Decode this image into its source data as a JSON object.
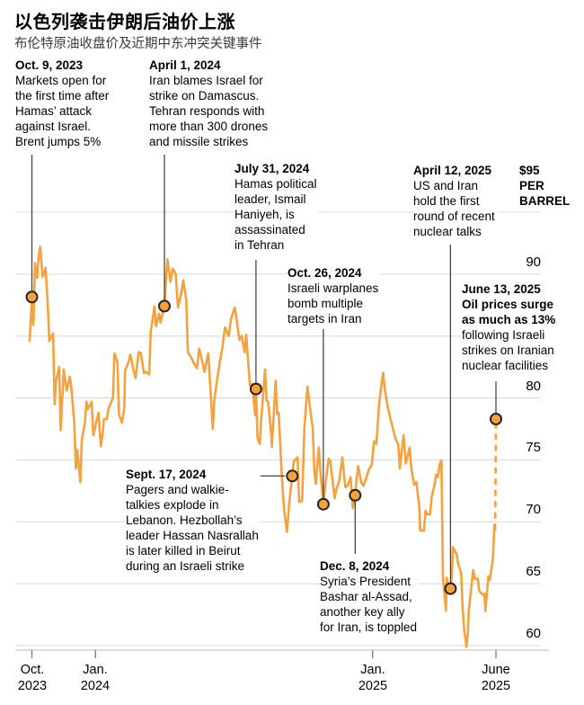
{
  "title": "以色列袭击伊朗后油价上涨",
  "subtitle": "布伦特原油收盘价及近期中东冲突关键事件",
  "colors": {
    "line": "#F6A13C",
    "marker_fill": "#F6A13C",
    "marker_stroke": "#262626",
    "grid": "#D8D8D8",
    "axis": "#C9C9C9",
    "tick": "#7A7A7A",
    "connector": "#404040",
    "text": "#000000",
    "subtitle_text": "#3A3A3A"
  },
  "chart_data": {
    "type": "line",
    "name": "Brent crude closing price, USD per barrel",
    "unit_label": "$95 PER BARREL",
    "unit_label_lines": [
      "$95",
      "PER",
      "BARREL"
    ],
    "ylim": [
      58,
      95.5
    ],
    "grid": "horizontal-only",
    "y_gridlines": [
      95,
      90,
      85,
      80,
      75,
      70,
      65,
      60
    ],
    "y_labeled_ticks": [
      "90",
      "80",
      "75",
      "70",
      "65",
      "60"
    ],
    "x_ticks": [
      {
        "date": "2023-10-09",
        "lines": [
          "Oct.",
          "2023"
        ]
      },
      {
        "date": "2024-01-01",
        "lines": [
          "Jan.",
          "2024"
        ]
      },
      {
        "date": "2025-01-01",
        "lines": [
          "Jan.",
          "2025"
        ]
      },
      {
        "date": "2025-06-13",
        "lines": [
          "June",
          "2025"
        ]
      }
    ],
    "points": [
      [
        "2023-10-06",
        84.6
      ],
      [
        "2023-10-09",
        88.15
      ],
      [
        "2023-10-11",
        85.9
      ],
      [
        "2023-10-13",
        90.9
      ],
      [
        "2023-10-16",
        89.7
      ],
      [
        "2023-10-18",
        91.5
      ],
      [
        "2023-10-20",
        92.2
      ],
      [
        "2023-10-23",
        89.8
      ],
      [
        "2023-10-25",
        90.1
      ],
      [
        "2023-10-27",
        90.5
      ],
      [
        "2023-10-30",
        87.5
      ],
      [
        "2023-11-01",
        84.6
      ],
      [
        "2023-11-03",
        84.9
      ],
      [
        "2023-11-06",
        85.2
      ],
      [
        "2023-11-08",
        79.5
      ],
      [
        "2023-11-10",
        81.4
      ],
      [
        "2023-11-14",
        82.5
      ],
      [
        "2023-11-16",
        77.4
      ],
      [
        "2023-11-20",
        82.3
      ],
      [
        "2023-11-22",
        81.4
      ],
      [
        "2023-11-24",
        80.6
      ],
      [
        "2023-11-28",
        81.7
      ],
      [
        "2023-11-30",
        80.9
      ],
      [
        "2023-12-04",
        78.0
      ],
      [
        "2023-12-06",
        74.3
      ],
      [
        "2023-12-08",
        75.8
      ],
      [
        "2023-12-12",
        73.2
      ],
      [
        "2023-12-14",
        76.6
      ],
      [
        "2023-12-18",
        78.0
      ],
      [
        "2023-12-20",
        79.7
      ],
      [
        "2023-12-22",
        79.1
      ],
      [
        "2023-12-27",
        79.7
      ],
      [
        "2023-12-29",
        77.0
      ],
      [
        "2024-01-03",
        78.3
      ],
      [
        "2024-01-05",
        78.8
      ],
      [
        "2024-01-08",
        76.1
      ],
      [
        "2024-01-11",
        77.4
      ],
      [
        "2024-01-12",
        78.3
      ],
      [
        "2024-01-16",
        78.3
      ],
      [
        "2024-01-18",
        79.1
      ],
      [
        "2024-01-24",
        80.0
      ],
      [
        "2024-01-26",
        83.6
      ],
      [
        "2024-01-30",
        82.9
      ],
      [
        "2024-02-01",
        78.7
      ],
      [
        "2024-02-05",
        78.0
      ],
      [
        "2024-02-08",
        79.2
      ],
      [
        "2024-02-09",
        82.2
      ],
      [
        "2024-02-13",
        82.8
      ],
      [
        "2024-02-16",
        83.5
      ],
      [
        "2024-02-20",
        82.3
      ],
      [
        "2024-02-23",
        81.6
      ],
      [
        "2024-02-27",
        83.7
      ],
      [
        "2024-03-01",
        83.6
      ],
      [
        "2024-03-05",
        82.0
      ],
      [
        "2024-03-08",
        82.1
      ],
      [
        "2024-03-12",
        81.9
      ],
      [
        "2024-03-14",
        85.4
      ],
      [
        "2024-03-19",
        87.4
      ],
      [
        "2024-03-21",
        85.8
      ],
      [
        "2024-03-25",
        86.8
      ],
      [
        "2024-03-27",
        86.1
      ],
      [
        "2024-04-01",
        87.42
      ],
      [
        "2024-04-03",
        89.4
      ],
      [
        "2024-04-05",
        91.2
      ],
      [
        "2024-04-09",
        89.4
      ],
      [
        "2024-04-12",
        90.45
      ],
      [
        "2024-04-16",
        90.0
      ],
      [
        "2024-04-19",
        87.3
      ],
      [
        "2024-04-23",
        88.4
      ],
      [
        "2024-04-26",
        89.5
      ],
      [
        "2024-04-30",
        87.9
      ],
      [
        "2024-05-02",
        83.7
      ],
      [
        "2024-05-07",
        83.2
      ],
      [
        "2024-05-10",
        82.8
      ],
      [
        "2024-05-14",
        82.4
      ],
      [
        "2024-05-17",
        84.0
      ],
      [
        "2024-05-21",
        82.9
      ],
      [
        "2024-05-24",
        82.1
      ],
      [
        "2024-05-29",
        83.6
      ],
      [
        "2024-05-31",
        81.6
      ],
      [
        "2024-06-04",
        77.5
      ],
      [
        "2024-06-06",
        79.9
      ],
      [
        "2024-06-10",
        81.6
      ],
      [
        "2024-06-13",
        82.8
      ],
      [
        "2024-06-17",
        84.2
      ],
      [
        "2024-06-20",
        85.7
      ],
      [
        "2024-06-25",
        85.0
      ],
      [
        "2024-06-28",
        86.4
      ],
      [
        "2024-07-03",
        87.3
      ],
      [
        "2024-07-05",
        86.5
      ],
      [
        "2024-07-09",
        84.7
      ],
      [
        "2024-07-12",
        85.0
      ],
      [
        "2024-07-16",
        83.7
      ],
      [
        "2024-07-18",
        85.1
      ],
      [
        "2024-07-23",
        81.0
      ],
      [
        "2024-07-26",
        81.1
      ],
      [
        "2024-07-30",
        78.6
      ],
      [
        "2024-07-31",
        80.72
      ],
      [
        "2024-08-02",
        76.8
      ],
      [
        "2024-08-05",
        76.3
      ],
      [
        "2024-08-07",
        78.3
      ],
      [
        "2024-08-12",
        82.3
      ],
      [
        "2024-08-14",
        79.8
      ],
      [
        "2024-08-16",
        79.7
      ],
      [
        "2024-08-20",
        77.2
      ],
      [
        "2024-08-21",
        76.05
      ],
      [
        "2024-08-26",
        81.4
      ],
      [
        "2024-08-28",
        78.7
      ],
      [
        "2024-08-30",
        78.8
      ],
      [
        "2024-09-03",
        73.75
      ],
      [
        "2024-09-06",
        71.06
      ],
      [
        "2024-09-10",
        69.19
      ],
      [
        "2024-09-13",
        71.6
      ],
      [
        "2024-09-17",
        73.7
      ],
      [
        "2024-09-19",
        74.9
      ],
      [
        "2024-09-24",
        75.2
      ],
      [
        "2024-09-26",
        71.6
      ],
      [
        "2024-09-30",
        71.7
      ],
      [
        "2024-10-01",
        73.56
      ],
      [
        "2024-10-03",
        77.6
      ],
      [
        "2024-10-07",
        80.93
      ],
      [
        "2024-10-10",
        79.4
      ],
      [
        "2024-10-14",
        77.5
      ],
      [
        "2024-10-16",
        74.2
      ],
      [
        "2024-10-18",
        73.06
      ],
      [
        "2024-10-22",
        76.0
      ],
      [
        "2024-10-24",
        74.2
      ],
      [
        "2024-10-28",
        71.42
      ],
      [
        "2024-10-31",
        73.2
      ],
      [
        "2024-11-04",
        75.1
      ],
      [
        "2024-11-06",
        74.9
      ],
      [
        "2024-11-08",
        73.9
      ],
      [
        "2024-11-12",
        71.9
      ],
      [
        "2024-11-14",
        72.6
      ],
      [
        "2024-11-18",
        73.3
      ],
      [
        "2024-11-22",
        75.2
      ],
      [
        "2024-11-26",
        72.8
      ],
      [
        "2024-11-29",
        72.9
      ],
      [
        "2024-12-03",
        73.6
      ],
      [
        "2024-12-06",
        71.1
      ],
      [
        "2024-12-09",
        72.14
      ],
      [
        "2024-12-11",
        73.5
      ],
      [
        "2024-12-13",
        74.5
      ],
      [
        "2024-12-17",
        73.2
      ],
      [
        "2024-12-20",
        72.9
      ],
      [
        "2024-12-24",
        73.6
      ],
      [
        "2024-12-27",
        74.2
      ],
      [
        "2024-12-31",
        74.6
      ],
      [
        "2025-01-03",
        76.5
      ],
      [
        "2025-01-06",
        76.3
      ],
      [
        "2025-01-10",
        79.76
      ],
      [
        "2025-01-15",
        82.03
      ],
      [
        "2025-01-17",
        80.8
      ],
      [
        "2025-01-21",
        79.3
      ],
      [
        "2025-01-24",
        78.5
      ],
      [
        "2025-01-28",
        77.5
      ],
      [
        "2025-01-31",
        76.8
      ],
      [
        "2025-02-04",
        76.2
      ],
      [
        "2025-02-06",
        74.3
      ],
      [
        "2025-02-11",
        77.0
      ],
      [
        "2025-02-14",
        74.7
      ],
      [
        "2025-02-19",
        76.0
      ],
      [
        "2025-02-21",
        74.4
      ],
      [
        "2025-02-25",
        73.0
      ],
      [
        "2025-02-28",
        73.2
      ],
      [
        "2025-03-04",
        71.0
      ],
      [
        "2025-03-05",
        69.3
      ],
      [
        "2025-03-10",
        69.3
      ],
      [
        "2025-03-12",
        70.9
      ],
      [
        "2025-03-14",
        70.6
      ],
      [
        "2025-03-18",
        70.6
      ],
      [
        "2025-03-20",
        72.0
      ],
      [
        "2025-03-24",
        73.0
      ],
      [
        "2025-03-26",
        73.8
      ],
      [
        "2025-03-28",
        73.6
      ],
      [
        "2025-03-31",
        74.7
      ],
      [
        "2025-04-02",
        74.95
      ],
      [
        "2025-04-04",
        65.58
      ],
      [
        "2025-04-08",
        62.82
      ],
      [
        "2025-04-09",
        65.48
      ],
      [
        "2025-04-11",
        64.76
      ],
      [
        "2025-04-14",
        64.6
      ],
      [
        "2025-04-16",
        65.85
      ],
      [
        "2025-04-17",
        67.96
      ],
      [
        "2025-04-22",
        67.4
      ],
      [
        "2025-04-24",
        66.6
      ],
      [
        "2025-04-28",
        65.9
      ],
      [
        "2025-04-30",
        63.1
      ],
      [
        "2025-05-02",
        61.3
      ],
      [
        "2025-05-05",
        59.9
      ],
      [
        "2025-05-07",
        61.1
      ],
      [
        "2025-05-08",
        62.8
      ],
      [
        "2025-05-12",
        64.96
      ],
      [
        "2025-05-14",
        66.1
      ],
      [
        "2025-05-16",
        65.4
      ],
      [
        "2025-05-20",
        65.4
      ],
      [
        "2025-05-22",
        64.4
      ],
      [
        "2025-05-27",
        64.1
      ],
      [
        "2025-05-29",
        64.2
      ],
      [
        "2025-05-30",
        62.8
      ],
      [
        "2025-06-03",
        65.6
      ],
      [
        "2025-06-05",
        65.3
      ],
      [
        "2025-06-09",
        67.0
      ],
      [
        "2025-06-11",
        69.77
      ],
      [
        "2025-06-12",
        69.36
      ]
    ],
    "dashed_extension": [
      [
        "2025-06-12",
        69.36
      ],
      [
        "2025-06-13",
        78.3
      ]
    ],
    "events": [
      {
        "id": "oct9",
        "date_label": "Oct. 9, 2023",
        "lines": [
          "Markets open for",
          "the first time after",
          "Hamas’ attack",
          "against Israel.",
          "Brent jumps 5%"
        ],
        "marker": {
          "date": "2023-10-09",
          "value": 88.15
        }
      },
      {
        "id": "apr1",
        "date_label": "April 1, 2024",
        "lines": [
          "Iran blames Israel for",
          "strike on Damascus.",
          "Tehran responds with",
          "more than 300 drones",
          "and missile strikes"
        ],
        "marker": {
          "date": "2024-04-01",
          "value": 87.42
        }
      },
      {
        "id": "jul31",
        "date_label": "July 31, 2024",
        "lines": [
          "Hamas political",
          "leader, Ismail",
          "Haniyeh, is",
          "assassinated",
          "in Tehran"
        ],
        "marker": {
          "date": "2024-07-31",
          "value": 80.72
        }
      },
      {
        "id": "oct26",
        "date_label": "Oct. 26, 2024",
        "lines": [
          "Israeli warplanes",
          "bomb multiple",
          "targets in Iran"
        ],
        "marker": {
          "date": "2024-10-28",
          "value": 71.42
        }
      },
      {
        "id": "sep17",
        "date_label": "Sept. 17, 2024",
        "lines": [
          "Pagers and walkie-",
          "talkies explode in",
          "Lebanon. Hezbollah’s",
          "leader Hassan Nasrallah",
          "is later killed in Beirut",
          "during an Israeli strike"
        ],
        "marker": {
          "date": "2024-09-17",
          "value": 73.7
        }
      },
      {
        "id": "dec8",
        "date_label": "Dec. 8, 2024",
        "lines": [
          "Syria’s President",
          "Bashar al-Assad,",
          "another key ally",
          "for Iran, is toppled"
        ],
        "marker": {
          "date": "2024-12-09",
          "value": 72.14
        }
      },
      {
        "id": "apr12",
        "date_label": "April 12, 2025",
        "lines": [
          "US and Iran",
          "hold the first",
          "round of recent",
          "nuclear talks"
        ],
        "marker": {
          "date": "2025-04-14",
          "value": 64.6
        }
      },
      {
        "id": "jun13",
        "date_label": "June 13, 2025",
        "bold_lines": [
          "Oil prices surge",
          "as much as 13%"
        ],
        "lines": [
          "following Israeli",
          "strikes on Iranian",
          "nuclear facilities"
        ],
        "marker": {
          "date": "2025-06-13",
          "value": 78.3
        }
      }
    ]
  }
}
